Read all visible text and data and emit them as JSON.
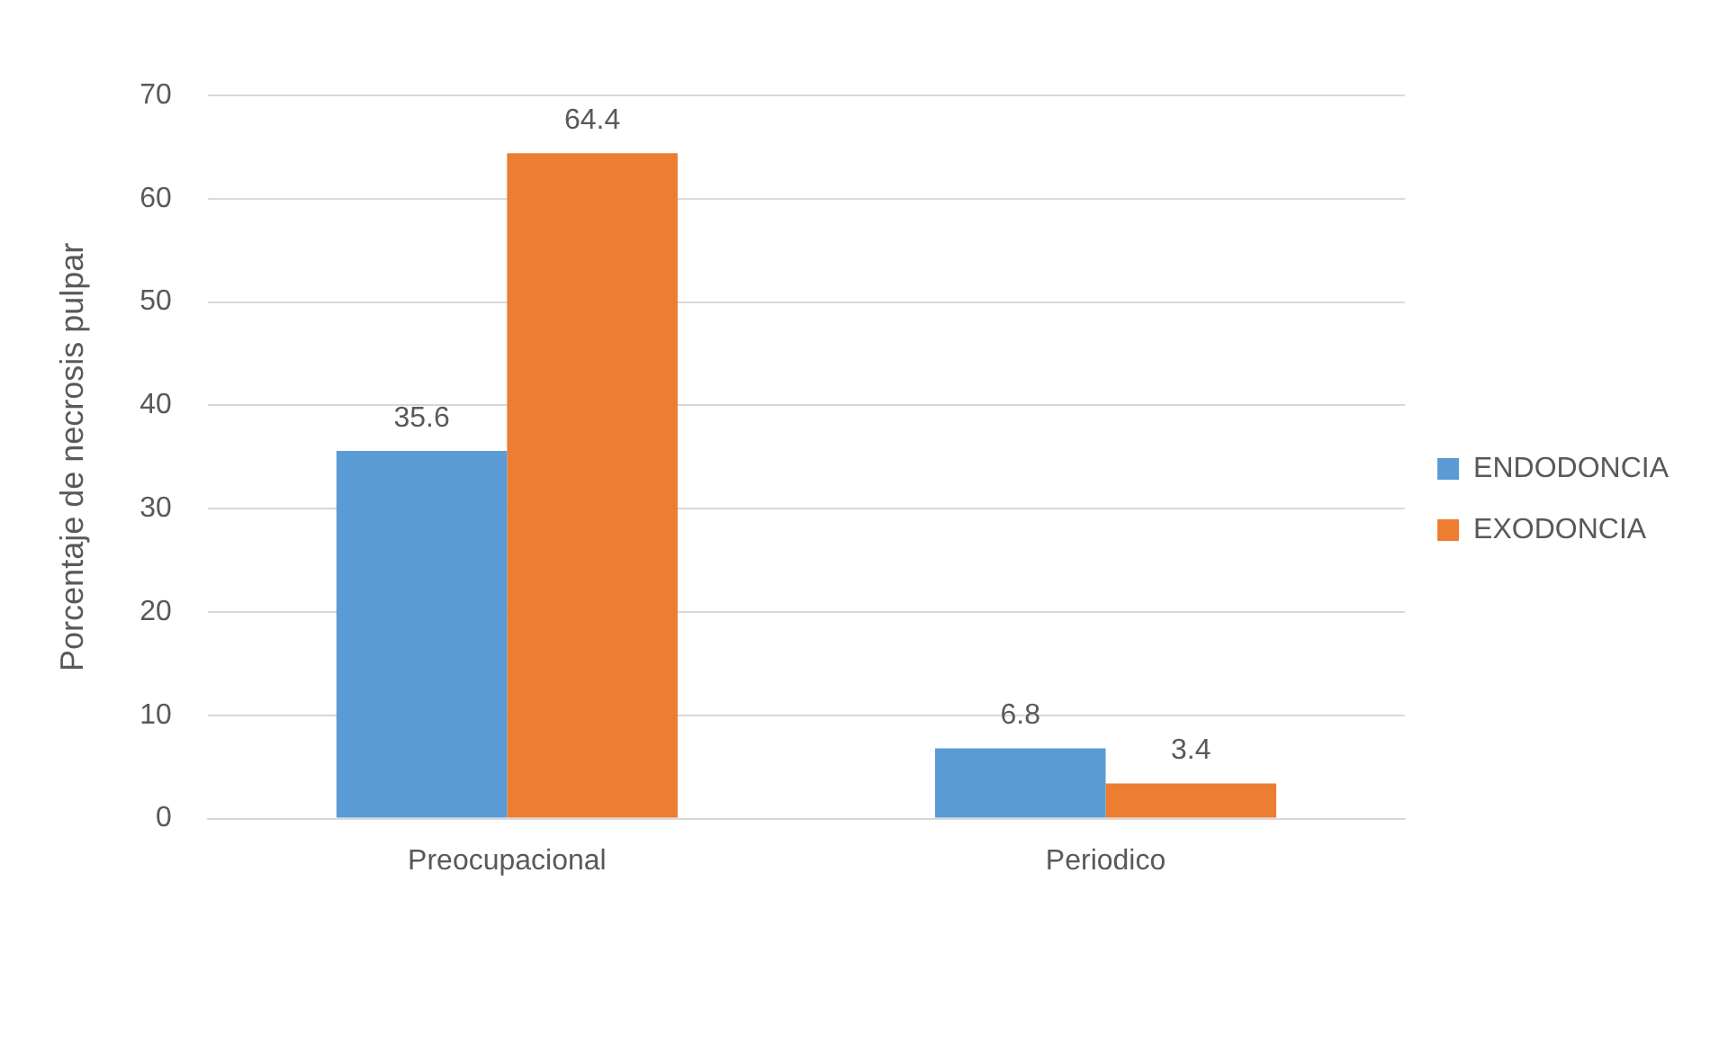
{
  "chart_data": {
    "type": "bar",
    "ylabel": "Porcentaje de necrosis pulpar",
    "categories": [
      "Preocupacional",
      "Periodico"
    ],
    "series": [
      {
        "name": "ENDODONCIA",
        "color": "#5b9bd5",
        "values": [
          35.6,
          6.8
        ]
      },
      {
        "name": "EXODONCIA",
        "color": "#ed7d31",
        "values": [
          64.4,
          3.4
        ]
      }
    ],
    "ylim": [
      0,
      70
    ],
    "yticks": [
      0,
      10,
      20,
      30,
      40,
      50,
      60,
      70
    ],
    "grid": "y",
    "legend": "right",
    "data_labels": true
  }
}
